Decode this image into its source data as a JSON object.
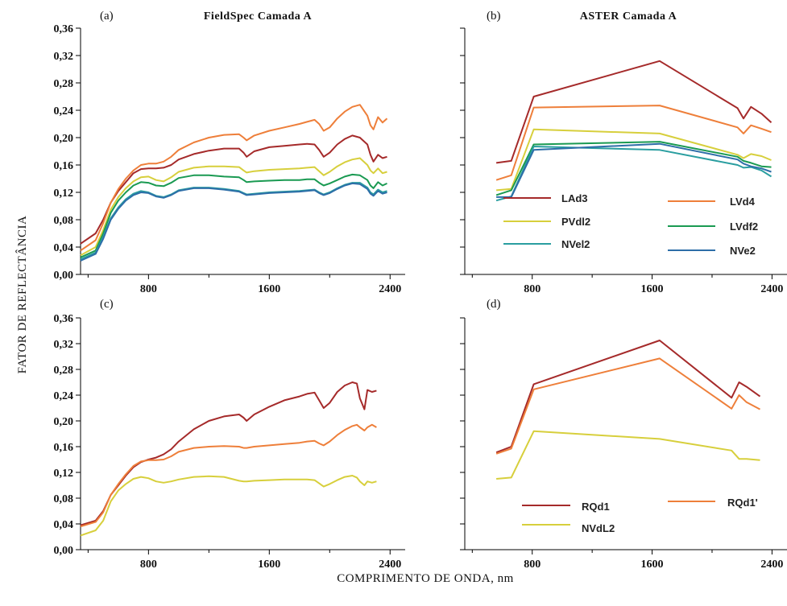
{
  "figure": {
    "ylabel": "FATOR DE REFLECTÂNCIA",
    "xlabel": "COMPRIMENTO DE ONDA, nm"
  },
  "colors": {
    "LAd3": "#a52a2a",
    "LVd4": "#ee7f3a",
    "PVdl2": "#d7cf3c",
    "LVdf2": "#1a9a52",
    "NVel2": "#2a9ea0",
    "NVe2": "#2d6ea8",
    "RQd1": "#a52a2a",
    "RQd1p": "#ee7f3a",
    "NVdL2": "#d7cf3c"
  },
  "chart_data": [
    {
      "id": "a",
      "letter": "(a)",
      "title": "FieldSpec Camada A",
      "type": "line",
      "xlim": [
        350,
        2500
      ],
      "ylim": [
        0,
        0.36
      ],
      "xticks": [
        800,
        1600,
        2400
      ],
      "yticks": [
        "0,00",
        "0,04",
        "0,08",
        "0,12",
        "0,16",
        "0,20",
        "0,24",
        "0,28",
        "0,32",
        "0,36"
      ],
      "series": [
        {
          "key": "LAd3",
          "x": [
            350,
            450,
            500,
            550,
            600,
            650,
            700,
            750,
            800,
            850,
            900,
            950,
            1000,
            1100,
            1200,
            1300,
            1400,
            1430,
            1450,
            1500,
            1600,
            1700,
            1800,
            1850,
            1900,
            1930,
            1960,
            2000,
            2050,
            2100,
            2150,
            2200,
            2250,
            2270,
            2290,
            2320,
            2350,
            2380
          ],
          "values": [
            0.045,
            0.06,
            0.08,
            0.105,
            0.122,
            0.135,
            0.148,
            0.154,
            0.155,
            0.155,
            0.156,
            0.16,
            0.168,
            0.176,
            0.181,
            0.184,
            0.184,
            0.178,
            0.172,
            0.18,
            0.186,
            0.188,
            0.19,
            0.191,
            0.19,
            0.182,
            0.172,
            0.178,
            0.19,
            0.198,
            0.203,
            0.2,
            0.19,
            0.175,
            0.165,
            0.175,
            0.17,
            0.172
          ]
        },
        {
          "key": "LVd4",
          "x": [
            350,
            450,
            500,
            550,
            600,
            650,
            700,
            750,
            800,
            850,
            900,
            950,
            1000,
            1100,
            1200,
            1300,
            1400,
            1430,
            1450,
            1500,
            1600,
            1700,
            1800,
            1850,
            1900,
            1930,
            1960,
            2000,
            2050,
            2100,
            2150,
            2200,
            2250,
            2270,
            2290,
            2320,
            2350,
            2380
          ],
          "values": [
            0.035,
            0.05,
            0.075,
            0.105,
            0.125,
            0.14,
            0.152,
            0.16,
            0.162,
            0.162,
            0.165,
            0.172,
            0.182,
            0.193,
            0.2,
            0.204,
            0.205,
            0.2,
            0.196,
            0.203,
            0.21,
            0.215,
            0.22,
            0.223,
            0.226,
            0.22,
            0.21,
            0.215,
            0.228,
            0.238,
            0.245,
            0.248,
            0.232,
            0.218,
            0.212,
            0.23,
            0.222,
            0.228
          ]
        },
        {
          "key": "PVdl2",
          "x": [
            350,
            450,
            500,
            550,
            600,
            650,
            700,
            750,
            800,
            850,
            900,
            950,
            1000,
            1100,
            1200,
            1300,
            1400,
            1430,
            1450,
            1500,
            1600,
            1700,
            1800,
            1850,
            1900,
            1930,
            1960,
            2000,
            2050,
            2100,
            2150,
            2200,
            2250,
            2270,
            2290,
            2320,
            2350,
            2380
          ],
          "values": [
            0.028,
            0.04,
            0.065,
            0.095,
            0.113,
            0.126,
            0.136,
            0.142,
            0.143,
            0.138,
            0.136,
            0.142,
            0.15,
            0.156,
            0.158,
            0.158,
            0.157,
            0.152,
            0.149,
            0.151,
            0.153,
            0.154,
            0.155,
            0.156,
            0.157,
            0.151,
            0.145,
            0.15,
            0.158,
            0.164,
            0.168,
            0.17,
            0.16,
            0.152,
            0.148,
            0.155,
            0.148,
            0.15
          ]
        },
        {
          "key": "LVdf2",
          "x": [
            350,
            450,
            500,
            550,
            600,
            650,
            700,
            750,
            800,
            850,
            900,
            950,
            1000,
            1100,
            1200,
            1300,
            1400,
            1430,
            1450,
            1500,
            1600,
            1700,
            1800,
            1850,
            1900,
            1930,
            1960,
            2000,
            2050,
            2100,
            2150,
            2200,
            2250,
            2270,
            2290,
            2320,
            2350,
            2380
          ],
          "values": [
            0.025,
            0.035,
            0.06,
            0.09,
            0.108,
            0.12,
            0.13,
            0.135,
            0.134,
            0.13,
            0.129,
            0.134,
            0.141,
            0.145,
            0.145,
            0.143,
            0.142,
            0.138,
            0.135,
            0.136,
            0.137,
            0.138,
            0.138,
            0.139,
            0.139,
            0.134,
            0.13,
            0.133,
            0.138,
            0.143,
            0.146,
            0.145,
            0.138,
            0.13,
            0.126,
            0.135,
            0.13,
            0.133
          ]
        },
        {
          "key": "NVel2",
          "x": [
            350,
            450,
            500,
            550,
            600,
            650,
            700,
            750,
            800,
            850,
            900,
            950,
            1000,
            1100,
            1200,
            1300,
            1400,
            1430,
            1450,
            1500,
            1600,
            1700,
            1800,
            1850,
            1900,
            1930,
            1960,
            2000,
            2050,
            2100,
            2150,
            2200,
            2250,
            2270,
            2290,
            2320,
            2350,
            2380
          ],
          "values": [
            0.022,
            0.032,
            0.055,
            0.082,
            0.098,
            0.11,
            0.118,
            0.122,
            0.12,
            0.115,
            0.113,
            0.117,
            0.123,
            0.127,
            0.127,
            0.125,
            0.122,
            0.119,
            0.117,
            0.118,
            0.12,
            0.121,
            0.122,
            0.123,
            0.124,
            0.12,
            0.117,
            0.12,
            0.126,
            0.131,
            0.134,
            0.134,
            0.127,
            0.12,
            0.117,
            0.124,
            0.12,
            0.122
          ]
        },
        {
          "key": "NVe2",
          "x": [
            350,
            450,
            500,
            550,
            600,
            650,
            700,
            750,
            800,
            850,
            900,
            950,
            1000,
            1100,
            1200,
            1300,
            1400,
            1430,
            1450,
            1500,
            1600,
            1700,
            1800,
            1850,
            1900,
            1930,
            1960,
            2000,
            2050,
            2100,
            2150,
            2200,
            2250,
            2270,
            2290,
            2320,
            2350,
            2380
          ],
          "values": [
            0.02,
            0.03,
            0.052,
            0.08,
            0.096,
            0.108,
            0.116,
            0.12,
            0.119,
            0.114,
            0.112,
            0.116,
            0.122,
            0.126,
            0.126,
            0.124,
            0.121,
            0.118,
            0.116,
            0.117,
            0.119,
            0.12,
            0.121,
            0.122,
            0.123,
            0.119,
            0.116,
            0.119,
            0.125,
            0.13,
            0.133,
            0.132,
            0.125,
            0.118,
            0.115,
            0.122,
            0.118,
            0.12
          ]
        }
      ]
    },
    {
      "id": "b",
      "letter": "(b)",
      "title": "ASTER Camada A",
      "type": "line",
      "xlim": [
        350,
        2500
      ],
      "ylim": [
        0,
        0.36
      ],
      "xticks": [
        800,
        1600,
        2400
      ],
      "series": [
        {
          "key": "LAd3",
          "label": "LAd3",
          "x": [
            560,
            660,
            810,
            1650,
            2170,
            2210,
            2260,
            2330,
            2395
          ],
          "values": [
            0.163,
            0.166,
            0.26,
            0.312,
            0.243,
            0.228,
            0.245,
            0.235,
            0.222
          ]
        },
        {
          "key": "LVd4",
          "label": "LVd4",
          "x": [
            560,
            660,
            810,
            1650,
            2170,
            2210,
            2260,
            2330,
            2395
          ],
          "values": [
            0.138,
            0.145,
            0.244,
            0.247,
            0.215,
            0.206,
            0.218,
            0.213,
            0.208
          ]
        },
        {
          "key": "PVdl2",
          "label": "PVdl2",
          "x": [
            560,
            660,
            810,
            1650,
            2170,
            2210,
            2260,
            2330,
            2395
          ],
          "values": [
            0.123,
            0.125,
            0.212,
            0.206,
            0.175,
            0.17,
            0.176,
            0.173,
            0.167
          ]
        },
        {
          "key": "LVdf2",
          "label": "LVdf2",
          "x": [
            560,
            660,
            810,
            1650,
            2170,
            2210,
            2260,
            2330,
            2395
          ],
          "values": [
            0.116,
            0.123,
            0.19,
            0.194,
            0.172,
            0.166,
            0.163,
            0.158,
            0.157
          ]
        },
        {
          "key": "NVel2",
          "label": "NVel2",
          "x": [
            560,
            660,
            810,
            1650,
            2170,
            2210,
            2260,
            2330,
            2395
          ],
          "values": [
            0.108,
            0.114,
            0.187,
            0.182,
            0.16,
            0.156,
            0.157,
            0.152,
            0.143
          ]
        },
        {
          "key": "NVe2",
          "label": "NVe2",
          "x": [
            560,
            660,
            810,
            1650,
            2170,
            2210,
            2260,
            2330,
            2395
          ],
          "values": [
            0.113,
            0.113,
            0.182,
            0.191,
            0.168,
            0.162,
            0.158,
            0.155,
            0.15
          ]
        }
      ]
    },
    {
      "id": "c",
      "letter": "(c)",
      "type": "line",
      "xlim": [
        350,
        2500
      ],
      "ylim": [
        0,
        0.36
      ],
      "xticks": [
        800,
        1600,
        2400
      ],
      "yticks": [
        "0,00",
        "0,04",
        "0,08",
        "0,12",
        "0,16",
        "0,20",
        "0,24",
        "0,28",
        "0,32",
        "0,36"
      ],
      "series": [
        {
          "key": "RQd1",
          "x": [
            350,
            450,
            500,
            550,
            600,
            650,
            700,
            750,
            800,
            850,
            900,
            950,
            1000,
            1100,
            1200,
            1300,
            1400,
            1430,
            1450,
            1500,
            1600,
            1700,
            1800,
            1850,
            1900,
            1930,
            1960,
            2000,
            2050,
            2100,
            2150,
            2180,
            2200,
            2230,
            2250,
            2280,
            2310
          ],
          "values": [
            0.038,
            0.045,
            0.06,
            0.085,
            0.1,
            0.115,
            0.128,
            0.136,
            0.14,
            0.143,
            0.148,
            0.156,
            0.168,
            0.187,
            0.2,
            0.207,
            0.21,
            0.205,
            0.2,
            0.21,
            0.222,
            0.232,
            0.238,
            0.242,
            0.244,
            0.232,
            0.22,
            0.228,
            0.245,
            0.255,
            0.26,
            0.258,
            0.235,
            0.218,
            0.248,
            0.245,
            0.247
          ]
        },
        {
          "key": "RQd1p",
          "x": [
            350,
            450,
            500,
            550,
            600,
            650,
            700,
            750,
            800,
            850,
            900,
            950,
            1000,
            1100,
            1200,
            1300,
            1400,
            1430,
            1450,
            1500,
            1600,
            1700,
            1800,
            1850,
            1900,
            1930,
            1960,
            2000,
            2050,
            2100,
            2150,
            2180,
            2200,
            2230,
            2250,
            2280,
            2310
          ],
          "values": [
            0.036,
            0.043,
            0.058,
            0.085,
            0.102,
            0.117,
            0.13,
            0.137,
            0.139,
            0.139,
            0.14,
            0.145,
            0.152,
            0.158,
            0.16,
            0.161,
            0.16,
            0.158,
            0.158,
            0.16,
            0.162,
            0.164,
            0.166,
            0.168,
            0.169,
            0.165,
            0.162,
            0.168,
            0.178,
            0.186,
            0.192,
            0.194,
            0.19,
            0.185,
            0.19,
            0.194,
            0.19
          ]
        },
        {
          "key": "NVdL2",
          "x": [
            350,
            450,
            500,
            550,
            600,
            650,
            700,
            750,
            800,
            850,
            900,
            950,
            1000,
            1100,
            1200,
            1300,
            1400,
            1430,
            1450,
            1500,
            1600,
            1700,
            1800,
            1850,
            1900,
            1930,
            1960,
            2000,
            2050,
            2100,
            2150,
            2180,
            2200,
            2230,
            2250,
            2280,
            2310
          ],
          "values": [
            0.022,
            0.03,
            0.045,
            0.075,
            0.092,
            0.102,
            0.11,
            0.113,
            0.111,
            0.106,
            0.104,
            0.106,
            0.109,
            0.113,
            0.114,
            0.113,
            0.107,
            0.106,
            0.106,
            0.107,
            0.108,
            0.109,
            0.109,
            0.109,
            0.108,
            0.103,
            0.098,
            0.102,
            0.108,
            0.113,
            0.115,
            0.112,
            0.106,
            0.1,
            0.106,
            0.104,
            0.106
          ]
        }
      ]
    },
    {
      "id": "d",
      "letter": "(d)",
      "type": "line",
      "xlim": [
        350,
        2500
      ],
      "ylim": [
        0,
        0.36
      ],
      "xticks": [
        800,
        1600,
        2400
      ],
      "series": [
        {
          "key": "RQd1",
          "label": "RQd1",
          "x": [
            560,
            660,
            810,
            1650,
            2130,
            2180,
            2230,
            2320
          ],
          "values": [
            0.151,
            0.16,
            0.257,
            0.325,
            0.236,
            0.26,
            0.253,
            0.238
          ]
        },
        {
          "key": "RQd1p",
          "label": "RQd1'",
          "x": [
            560,
            660,
            810,
            1650,
            2130,
            2180,
            2230,
            2320
          ],
          "values": [
            0.149,
            0.157,
            0.249,
            0.297,
            0.219,
            0.24,
            0.229,
            0.218
          ]
        },
        {
          "key": "NVdL2",
          "label": "NVdL2",
          "x": [
            560,
            660,
            810,
            1650,
            2130,
            2180,
            2230,
            2320
          ],
          "values": [
            0.11,
            0.112,
            0.184,
            0.172,
            0.154,
            0.141,
            0.141,
            0.139
          ]
        }
      ]
    }
  ]
}
